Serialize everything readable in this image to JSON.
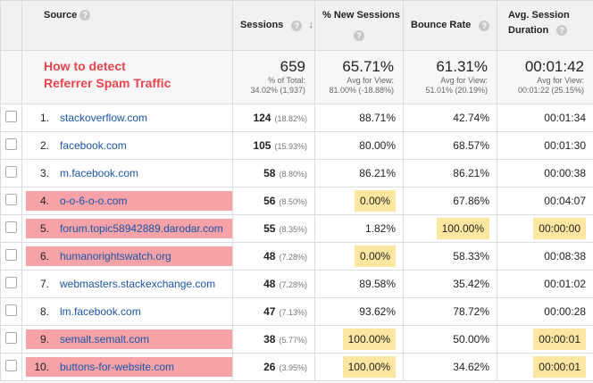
{
  "headers": {
    "source": "Source",
    "sessions": "Sessions",
    "new_sessions": "% New Sessions",
    "bounce_rate": "Bounce Rate",
    "avg_duration_line1": "Avg. Session",
    "avg_duration_line2": "Duration"
  },
  "headline": [
    "How to detect",
    "Referrer Spam Traffic"
  ],
  "totals": {
    "sessions": "659",
    "sessions_sub1": "% of Total:",
    "sessions_sub2": "34.02% (1,937)",
    "new_sessions": "65.71%",
    "new_sessions_sub1": "Avg for View:",
    "new_sessions_sub2": "81.00% (-18.88%)",
    "bounce_rate": "61.31%",
    "bounce_rate_sub1": "Avg for View:",
    "bounce_rate_sub2": "51.01% (20.19%)",
    "avg_duration": "00:01:42",
    "avg_duration_sub1": "Avg for View:",
    "avg_duration_sub2": "00:01:22 (25.15%)"
  },
  "colors": {
    "spam_highlight": "#f6a2a6",
    "metric_highlight": "#fde6a0",
    "headline": "#e8454d"
  },
  "rows": [
    {
      "index": "1.",
      "source": "stackoverflow.com",
      "sessions": "124",
      "pct": "(18.82%)",
      "new": "88.71%",
      "bounce": "42.74%",
      "duration": "00:01:34",
      "spam": false,
      "hl_new": false,
      "hl_bounce": false,
      "hl_dur": false
    },
    {
      "index": "2.",
      "source": "facebook.com",
      "sessions": "105",
      "pct": "(15.93%)",
      "new": "80.00%",
      "bounce": "68.57%",
      "duration": "00:01:30",
      "spam": false,
      "hl_new": false,
      "hl_bounce": false,
      "hl_dur": false
    },
    {
      "index": "3.",
      "source": "m.facebook.com",
      "sessions": "58",
      "pct": "(8.80%)",
      "new": "86.21%",
      "bounce": "86.21%",
      "duration": "00:00:38",
      "spam": false,
      "hl_new": false,
      "hl_bounce": false,
      "hl_dur": false
    },
    {
      "index": "4.",
      "source": "o-o-6-o-o.com",
      "sessions": "56",
      "pct": "(8.50%)",
      "new": "0.00%",
      "bounce": "67.86%",
      "duration": "00:04:07",
      "spam": true,
      "hl_new": true,
      "hl_bounce": false,
      "hl_dur": false
    },
    {
      "index": "5.",
      "source": "forum.topic58942889.darodar.com",
      "sessions": "55",
      "pct": "(8.35%)",
      "new": "1.82%",
      "bounce": "100.00%",
      "duration": "00:00:00",
      "spam": true,
      "hl_new": false,
      "hl_bounce": true,
      "hl_dur": true
    },
    {
      "index": "6.",
      "source": "humanorightswatch.org",
      "sessions": "48",
      "pct": "(7.28%)",
      "new": "0.00%",
      "bounce": "58.33%",
      "duration": "00:08:38",
      "spam": true,
      "hl_new": true,
      "hl_bounce": false,
      "hl_dur": false
    },
    {
      "index": "7.",
      "source": "webmasters.stackexchange.com",
      "sessions": "48",
      "pct": "(7.28%)",
      "new": "89.58%",
      "bounce": "35.42%",
      "duration": "00:01:02",
      "spam": false,
      "hl_new": false,
      "hl_bounce": false,
      "hl_dur": false
    },
    {
      "index": "8.",
      "source": "lm.facebook.com",
      "sessions": "47",
      "pct": "(7.13%)",
      "new": "93.62%",
      "bounce": "78.72%",
      "duration": "00:00:28",
      "spam": false,
      "hl_new": false,
      "hl_bounce": false,
      "hl_dur": false
    },
    {
      "index": "9.",
      "source": "semalt.semalt.com",
      "sessions": "38",
      "pct": "(5.77%)",
      "new": "100.00%",
      "bounce": "50.00%",
      "duration": "00:00:01",
      "spam": true,
      "hl_new": true,
      "hl_bounce": false,
      "hl_dur": true
    },
    {
      "index": "10.",
      "source": "buttons-for-website.com",
      "sessions": "26",
      "pct": "(3.95%)",
      "new": "100.00%",
      "bounce": "34.62%",
      "duration": "00:00:01",
      "spam": true,
      "hl_new": true,
      "hl_bounce": false,
      "hl_dur": true
    }
  ]
}
